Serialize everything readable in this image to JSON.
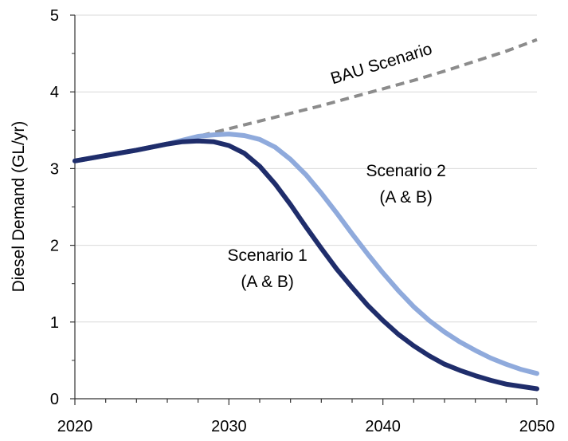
{
  "chart_data": {
    "type": "line",
    "title": "",
    "xlabel": "",
    "ylabel": "Diesel Demand (GL/yr)",
    "xlim": [
      2020,
      2050
    ],
    "ylim": [
      0,
      5
    ],
    "xticks": [
      2020,
      2030,
      2040,
      2050
    ],
    "yticks": [
      0,
      1,
      2,
      3,
      4,
      5
    ],
    "grid": "horizontal",
    "legend": "none",
    "series": [
      {
        "name": "BAU Scenario",
        "color": "#8c8c8c",
        "style": "dashed",
        "x": [
          2020,
          2022,
          2024,
          2026,
          2028,
          2030,
          2032,
          2034,
          2036,
          2038,
          2040,
          2042,
          2044,
          2046,
          2048,
          2050
        ],
        "values": [
          3.1,
          3.17,
          3.24,
          3.32,
          3.42,
          3.52,
          3.62,
          3.72,
          3.82,
          3.93,
          4.04,
          4.15,
          4.27,
          4.4,
          4.53,
          4.68
        ]
      },
      {
        "name": "Scenario 2",
        "color": "#8faadc",
        "style": "solid",
        "x": [
          2020,
          2022,
          2024,
          2026,
          2027,
          2028,
          2029,
          2030,
          2031,
          2032,
          2033,
          2034,
          2035,
          2036,
          2037,
          2038,
          2039,
          2040,
          2041,
          2042,
          2043,
          2044,
          2045,
          2046,
          2047,
          2048,
          2049,
          2050
        ],
        "values": [
          3.1,
          3.17,
          3.24,
          3.32,
          3.37,
          3.42,
          3.44,
          3.45,
          3.43,
          3.38,
          3.28,
          3.12,
          2.92,
          2.68,
          2.42,
          2.15,
          1.89,
          1.64,
          1.41,
          1.2,
          1.02,
          0.87,
          0.74,
          0.63,
          0.53,
          0.45,
          0.38,
          0.33
        ]
      },
      {
        "name": "Scenario 1",
        "color": "#1f2d6b",
        "style": "solid",
        "x": [
          2020,
          2022,
          2024,
          2026,
          2027,
          2028,
          2029,
          2030,
          2031,
          2032,
          2033,
          2034,
          2035,
          2036,
          2037,
          2038,
          2039,
          2040,
          2041,
          2042,
          2043,
          2044,
          2045,
          2046,
          2047,
          2048,
          2049,
          2050
        ],
        "values": [
          3.1,
          3.17,
          3.24,
          3.32,
          3.35,
          3.36,
          3.35,
          3.3,
          3.2,
          3.03,
          2.8,
          2.53,
          2.24,
          1.96,
          1.69,
          1.45,
          1.22,
          1.02,
          0.84,
          0.69,
          0.56,
          0.45,
          0.37,
          0.3,
          0.24,
          0.19,
          0.16,
          0.13
        ]
      }
    ],
    "annotations": [
      {
        "lines": [
          "BAU Scenario"
        ],
        "x": 2040,
        "y": 4.3
      },
      {
        "lines": [
          "Scenario 2",
          "(A & B)"
        ],
        "x": 2041.5,
        "y": 2.9
      },
      {
        "lines": [
          "Scenario 1",
          "(A & B)"
        ],
        "x": 2032.5,
        "y": 1.8
      }
    ]
  }
}
